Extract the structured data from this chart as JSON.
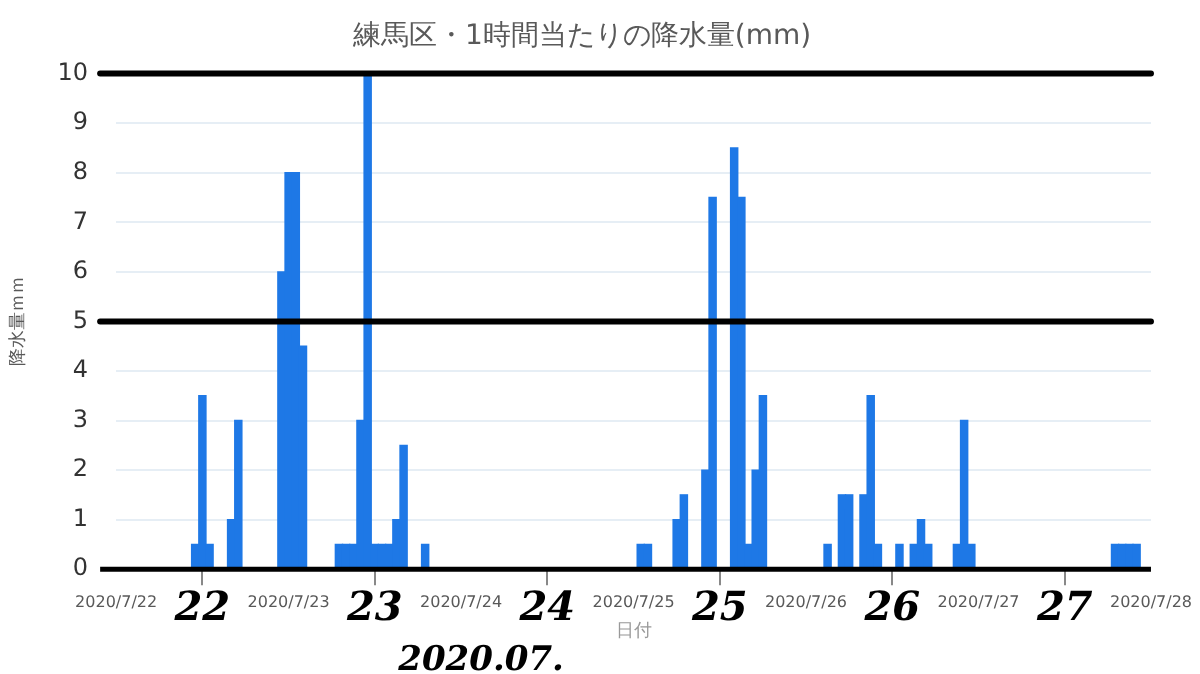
{
  "chart_data": {
    "type": "bar",
    "title": "練馬区・1時間当たりの降水量(mm)",
    "xlabel": "日付",
    "ylabel": "降水量ｍｍ",
    "x": [
      "2020-07-22T11:00",
      "2020-07-22T12:00",
      "2020-07-22T13:00",
      "2020-07-22T16:00",
      "2020-07-22T17:00",
      "2020-07-22T23:00",
      "2020-07-23T00:00",
      "2020-07-23T01:00",
      "2020-07-23T02:00",
      "2020-07-23T07:00",
      "2020-07-23T08:00",
      "2020-07-23T09:00",
      "2020-07-23T10:00",
      "2020-07-23T11:00",
      "2020-07-23T12:00",
      "2020-07-23T13:00",
      "2020-07-23T14:00",
      "2020-07-23T15:00",
      "2020-07-23T16:00",
      "2020-07-23T19:00",
      "2020-07-25T01:00",
      "2020-07-25T02:00",
      "2020-07-25T06:00",
      "2020-07-25T07:00",
      "2020-07-25T10:00",
      "2020-07-25T11:00",
      "2020-07-25T14:00",
      "2020-07-25T15:00",
      "2020-07-25T16:00",
      "2020-07-25T17:00",
      "2020-07-25T18:00",
      "2020-07-26T03:00",
      "2020-07-26T05:00",
      "2020-07-26T06:00",
      "2020-07-26T08:00",
      "2020-07-26T09:00",
      "2020-07-26T10:00",
      "2020-07-26T13:00",
      "2020-07-26T15:00",
      "2020-07-26T16:00",
      "2020-07-26T17:00",
      "2020-07-26T21:00",
      "2020-07-26T22:00",
      "2020-07-26T23:00",
      "2020-07-27T19:00",
      "2020-07-27T20:00",
      "2020-07-27T21:00",
      "2020-07-27T22:00"
    ],
    "values": [
      0.5,
      3.5,
      0.5,
      1,
      3,
      6,
      8,
      8,
      4.5,
      0.5,
      0.5,
      0.5,
      3,
      10,
      0.5,
      0.5,
      0.5,
      1,
      2.5,
      0.5,
      0.5,
      0.5,
      1,
      1.5,
      2,
      7.5,
      8.5,
      7.5,
      0.5,
      2,
      3.5,
      0.5,
      1.5,
      1.5,
      1.5,
      3.5,
      0.5,
      0.5,
      0.5,
      1,
      0.5,
      0.5,
      3,
      0.5,
      0.5,
      0.5,
      0.5,
      0.5
    ],
    "color": "#1e78e6",
    "xlim": [
      "2020-07-22",
      "2020-07-28"
    ],
    "xticks": [
      {
        "value": "2020-07-22",
        "label": "2020/7/22"
      },
      {
        "value": "2020-07-23",
        "label": "2020/7/23"
      },
      {
        "value": "2020-07-24",
        "label": "2020/7/24"
      },
      {
        "value": "2020-07-25",
        "label": "2020/7/25"
      },
      {
        "value": "2020-07-26",
        "label": "2020/7/26"
      },
      {
        "value": "2020-07-27",
        "label": "2020/7/27"
      },
      {
        "value": "2020-07-28",
        "label": "2020/7/28"
      }
    ],
    "ylim": [
      0,
      10
    ],
    "yticks": [
      0,
      1,
      2,
      3,
      4,
      5,
      6,
      7,
      8,
      9,
      10
    ],
    "grid": "y",
    "ref_lines": [
      {
        "axis": "y",
        "value": 10,
        "color": "#000000"
      },
      {
        "axis": "y",
        "value": 5,
        "color": "#000000"
      }
    ],
    "annotations": [
      "22",
      "23",
      "24",
      "25",
      "26",
      "27",
      "2020.07."
    ]
  }
}
